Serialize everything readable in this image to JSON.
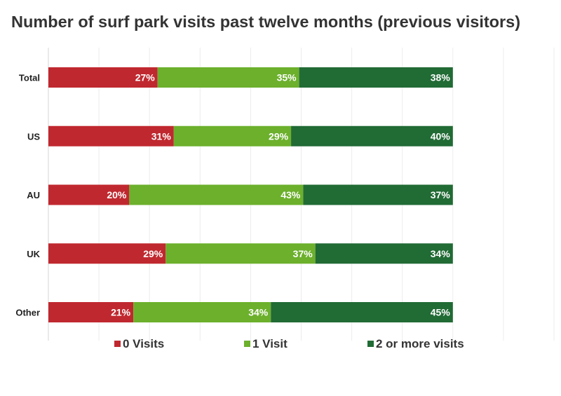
{
  "chart_data": {
    "type": "bar",
    "orientation": "horizontal",
    "stacked": true,
    "title": "Number of surf park visits past twelve months (previous visitors)",
    "categories": [
      "Total",
      "US",
      "AU",
      "UK",
      "Other"
    ],
    "series": [
      {
        "name": "0 Visits",
        "color": "#c0282f",
        "values": [
          27,
          31,
          20,
          29,
          21
        ]
      },
      {
        "name": "1 Visit",
        "color": "#6cb02c",
        "values": [
          35,
          29,
          43,
          37,
          34
        ]
      },
      {
        "name": "2 or more visits",
        "color": "#216b35",
        "values": [
          38,
          40,
          37,
          34,
          45
        ]
      }
    ],
    "value_suffix": "%",
    "xlim": [
      0,
      125
    ],
    "grid": true,
    "legend_position": "bottom"
  }
}
